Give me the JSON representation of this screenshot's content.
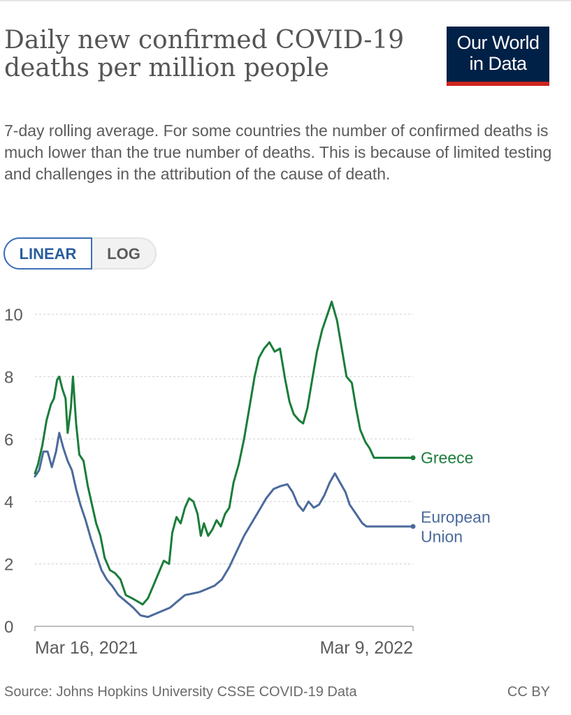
{
  "title": "Daily new confirmed COVID-19 deaths per million people",
  "subtitle": "7-day rolling average. For some countries the number of confirmed deaths is much lower than the true number of deaths. This is because of limited testing and challenges in the attribution of the cause of death.",
  "logo": {
    "line1": "Our World",
    "line2": "in Data"
  },
  "scale_toggle": {
    "linear": "LINEAR",
    "log": "LOG",
    "selected": "LINEAR"
  },
  "source": "Source: Johns Hopkins University CSSE COVID-19 Data",
  "license": "CC BY",
  "colors": {
    "greece": "#1a7d3a",
    "eu": "#4c6a9c",
    "grid": "#cfcfcf",
    "text": "#5b5b5b",
    "logo_bg": "#002147",
    "logo_accent": "#ce261e"
  },
  "chart_data": {
    "type": "line",
    "title": "Daily new confirmed COVID-19 deaths per million people",
    "x_type": "date",
    "x_start": "2021-03-16",
    "x_end": "2022-03-09",
    "xticks": [
      "Mar 16, 2021",
      "Mar 9, 2022"
    ],
    "ylim": [
      0,
      10.5
    ],
    "yticks": [
      0,
      2,
      4,
      6,
      8,
      10
    ],
    "grid": "horizontal-dashed",
    "legend": "right-inline-labels",
    "series": [
      {
        "name": "Greece",
        "color": "#1a7d3a",
        "points": [
          [
            "2021-03-16",
            4.9
          ],
          [
            "2021-03-19",
            5.2
          ],
          [
            "2021-03-23",
            5.8
          ],
          [
            "2021-03-27",
            6.6
          ],
          [
            "2021-03-31",
            7.1
          ],
          [
            "2021-04-03",
            7.3
          ],
          [
            "2021-04-06",
            7.9
          ],
          [
            "2021-04-08",
            8.0
          ],
          [
            "2021-04-11",
            7.6
          ],
          [
            "2021-04-14",
            7.3
          ],
          [
            "2021-04-16",
            6.2
          ],
          [
            "2021-04-19",
            7.0
          ],
          [
            "2021-04-21",
            8.0
          ],
          [
            "2021-04-24",
            6.5
          ],
          [
            "2021-04-27",
            5.5
          ],
          [
            "2021-05-01",
            5.3
          ],
          [
            "2021-05-05",
            4.5
          ],
          [
            "2021-05-09",
            3.9
          ],
          [
            "2021-05-13",
            3.3
          ],
          [
            "2021-05-17",
            2.9
          ],
          [
            "2021-05-21",
            2.2
          ],
          [
            "2021-05-26",
            1.8
          ],
          [
            "2021-05-31",
            1.7
          ],
          [
            "2021-06-05",
            1.5
          ],
          [
            "2021-06-10",
            1.0
          ],
          [
            "2021-06-16",
            0.9
          ],
          [
            "2021-06-21",
            0.8
          ],
          [
            "2021-06-26",
            0.7
          ],
          [
            "2021-07-01",
            0.9
          ],
          [
            "2021-07-06",
            1.3
          ],
          [
            "2021-07-11",
            1.7
          ],
          [
            "2021-07-16",
            2.1
          ],
          [
            "2021-07-21",
            2.0
          ],
          [
            "2021-07-24",
            3.0
          ],
          [
            "2021-07-28",
            3.5
          ],
          [
            "2021-08-01",
            3.3
          ],
          [
            "2021-08-05",
            3.8
          ],
          [
            "2021-08-09",
            4.1
          ],
          [
            "2021-08-13",
            4.0
          ],
          [
            "2021-08-17",
            3.6
          ],
          [
            "2021-08-20",
            2.9
          ],
          [
            "2021-08-23",
            3.3
          ],
          [
            "2021-08-27",
            2.9
          ],
          [
            "2021-08-31",
            3.1
          ],
          [
            "2021-09-04",
            3.4
          ],
          [
            "2021-09-08",
            3.2
          ],
          [
            "2021-09-12",
            3.6
          ],
          [
            "2021-09-16",
            3.8
          ],
          [
            "2021-09-20",
            4.6
          ],
          [
            "2021-09-25",
            5.2
          ],
          [
            "2021-09-30",
            6.0
          ],
          [
            "2021-10-05",
            7.0
          ],
          [
            "2021-10-10",
            8.0
          ],
          [
            "2021-10-14",
            8.6
          ],
          [
            "2021-10-19",
            8.9
          ],
          [
            "2021-10-24",
            9.1
          ],
          [
            "2021-10-29",
            8.8
          ],
          [
            "2021-11-03",
            8.9
          ],
          [
            "2021-11-08",
            7.9
          ],
          [
            "2021-11-12",
            7.2
          ],
          [
            "2021-11-16",
            6.8
          ],
          [
            "2021-11-21",
            6.6
          ],
          [
            "2021-11-25",
            6.5
          ],
          [
            "2021-11-29",
            7.0
          ],
          [
            "2021-12-04",
            8.0
          ],
          [
            "2021-12-08",
            8.8
          ],
          [
            "2021-12-13",
            9.5
          ],
          [
            "2021-12-18",
            10.0
          ],
          [
            "2021-12-22",
            10.4
          ],
          [
            "2021-12-27",
            9.8
          ],
          [
            "2022-01-01",
            8.8
          ],
          [
            "2022-01-05",
            8.0
          ],
          [
            "2022-01-10",
            7.8
          ],
          [
            "2022-01-14",
            7.0
          ],
          [
            "2022-01-18",
            6.3
          ],
          [
            "2022-01-23",
            5.9
          ],
          [
            "2022-01-27",
            5.7
          ],
          [
            "2022-01-31",
            5.4
          ]
        ]
      },
      {
        "name": "European Union",
        "color": "#4c6a9c",
        "points": [
          [
            "2021-03-16",
            4.8
          ],
          [
            "2021-03-20",
            5.0
          ],
          [
            "2021-03-24",
            5.6
          ],
          [
            "2021-03-28",
            5.6
          ],
          [
            "2021-04-01",
            5.1
          ],
          [
            "2021-04-05",
            5.6
          ],
          [
            "2021-04-08",
            6.2
          ],
          [
            "2021-04-12",
            5.7
          ],
          [
            "2021-04-16",
            5.3
          ],
          [
            "2021-04-20",
            5.0
          ],
          [
            "2021-04-24",
            4.4
          ],
          [
            "2021-04-28",
            3.9
          ],
          [
            "2021-05-03",
            3.4
          ],
          [
            "2021-05-08",
            2.8
          ],
          [
            "2021-05-13",
            2.3
          ],
          [
            "2021-05-18",
            1.8
          ],
          [
            "2021-05-23",
            1.5
          ],
          [
            "2021-05-28",
            1.3
          ],
          [
            "2021-06-03",
            1.0
          ],
          [
            "2021-06-10",
            0.8
          ],
          [
            "2021-06-17",
            0.6
          ],
          [
            "2021-06-24",
            0.35
          ],
          [
            "2021-07-01",
            0.3
          ],
          [
            "2021-07-08",
            0.4
          ],
          [
            "2021-07-15",
            0.5
          ],
          [
            "2021-07-22",
            0.6
          ],
          [
            "2021-07-29",
            0.8
          ],
          [
            "2021-08-05",
            1.0
          ],
          [
            "2021-08-12",
            1.05
          ],
          [
            "2021-08-19",
            1.1
          ],
          [
            "2021-08-26",
            1.2
          ],
          [
            "2021-09-02",
            1.3
          ],
          [
            "2021-09-09",
            1.5
          ],
          [
            "2021-09-16",
            1.9
          ],
          [
            "2021-09-23",
            2.4
          ],
          [
            "2021-09-30",
            2.9
          ],
          [
            "2021-10-07",
            3.3
          ],
          [
            "2021-10-14",
            3.7
          ],
          [
            "2021-10-21",
            4.1
          ],
          [
            "2021-10-28",
            4.4
          ],
          [
            "2021-11-04",
            4.5
          ],
          [
            "2021-11-10",
            4.55
          ],
          [
            "2021-11-15",
            4.3
          ],
          [
            "2021-11-20",
            3.9
          ],
          [
            "2021-11-25",
            3.7
          ],
          [
            "2021-11-30",
            4.0
          ],
          [
            "2021-12-05",
            3.8
          ],
          [
            "2021-12-10",
            3.9
          ],
          [
            "2021-12-15",
            4.2
          ],
          [
            "2021-12-20",
            4.6
          ],
          [
            "2021-12-25",
            4.9
          ],
          [
            "2021-12-30",
            4.6
          ],
          [
            "2022-01-04",
            4.3
          ],
          [
            "2022-01-08",
            3.9
          ],
          [
            "2022-01-12",
            3.7
          ],
          [
            "2022-01-16",
            3.5
          ],
          [
            "2022-01-20",
            3.3
          ],
          [
            "2022-01-24",
            3.2
          ],
          [
            "2022-01-31",
            3.2
          ]
        ]
      }
    ]
  }
}
